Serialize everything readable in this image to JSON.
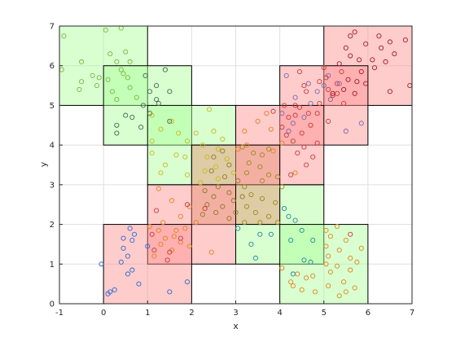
{
  "chart_data": {
    "type": "scatter",
    "title": "",
    "xlabel": "x",
    "ylabel": "y",
    "xlim": [
      -1,
      7
    ],
    "ylim": [
      0,
      7
    ],
    "xticks": [
      -1,
      0,
      1,
      2,
      3,
      4,
      5,
      6,
      7
    ],
    "yticks": [
      0,
      1,
      2,
      3,
      4,
      5,
      6,
      7
    ],
    "grid": true,
    "legend": "none",
    "colors": {
      "green_region": "#aaff99",
      "red_region": "#ff8f8f",
      "region_edge": "#000000"
    },
    "regions": [
      {
        "x0": -1,
        "x1": 1,
        "y0": 5,
        "y1": 7,
        "color": "green"
      },
      {
        "x0": 0,
        "x1": 2,
        "y0": 4,
        "y1": 6,
        "color": "green"
      },
      {
        "x0": 1,
        "x1": 3,
        "y0": 3,
        "y1": 5,
        "color": "green"
      },
      {
        "x0": 2,
        "x1": 4,
        "y0": 2,
        "y1": 4,
        "color": "green"
      },
      {
        "x0": 3,
        "x1": 5,
        "y0": 1,
        "y1": 3,
        "color": "green"
      },
      {
        "x0": 4,
        "x1": 6,
        "y0": 0,
        "y1": 2,
        "color": "green"
      },
      {
        "x0": 5,
        "x1": 7,
        "y0": 5,
        "y1": 7,
        "color": "red"
      },
      {
        "x0": 4,
        "x1": 6,
        "y0": 4,
        "y1": 6,
        "color": "red"
      },
      {
        "x0": 3,
        "x1": 5,
        "y0": 3,
        "y1": 5,
        "color": "red"
      },
      {
        "x0": 2,
        "x1": 4,
        "y0": 2,
        "y1": 4,
        "color": "red"
      },
      {
        "x0": 1,
        "x1": 3,
        "y0": 1,
        "y1": 3,
        "color": "red"
      },
      {
        "x0": 0,
        "x1": 2,
        "y0": 0,
        "y1": 2,
        "color": "red"
      }
    ],
    "series": [
      {
        "color": "#78b83a",
        "points": [
          [
            -0.9,
            6.75
          ],
          [
            0.05,
            6.9
          ],
          [
            0.4,
            6.95
          ],
          [
            0.15,
            6.3
          ],
          [
            0.5,
            6.35
          ],
          [
            0.3,
            6.1
          ],
          [
            -0.5,
            6.1
          ],
          [
            -0.25,
            5.75
          ],
          [
            -0.1,
            5.7
          ],
          [
            -0.5,
            5.6
          ],
          [
            -0.55,
            5.4
          ],
          [
            -0.95,
            5.9
          ],
          [
            0.4,
            5.9
          ],
          [
            0.45,
            5.8
          ],
          [
            0.1,
            5.65
          ],
          [
            0.55,
            5.7
          ],
          [
            0.6,
            5.45
          ],
          [
            0.2,
            5.35
          ],
          [
            0.3,
            5.15
          ],
          [
            0.75,
            5.2
          ],
          [
            -0.15,
            5.5
          ],
          [
            0.6,
            6.1
          ]
        ]
      },
      {
        "color": "#3a6a4a",
        "points": [
          [
            1.4,
            5.9
          ],
          [
            0.95,
            5.75
          ],
          [
            1.2,
            5.5
          ],
          [
            1.05,
            5.35
          ],
          [
            1.2,
            5.15
          ],
          [
            1.5,
            5.35
          ],
          [
            1.25,
            5.05
          ],
          [
            0.9,
            5.0
          ],
          [
            1.05,
            4.8
          ],
          [
            0.5,
            4.75
          ],
          [
            0.65,
            4.7
          ],
          [
            0.3,
            4.5
          ],
          [
            0.85,
            4.45
          ],
          [
            0.3,
            4.3
          ],
          [
            1.5,
            4.6
          ]
        ]
      },
      {
        "color": "#c9b820",
        "points": [
          [
            1.1,
            4.75
          ],
          [
            1.55,
            4.6
          ],
          [
            1.3,
            4.4
          ],
          [
            1.7,
            4.3
          ],
          [
            1.1,
            4.1
          ],
          [
            1.9,
            4.1
          ],
          [
            2.1,
            4.3
          ],
          [
            1.1,
            3.8
          ],
          [
            1.65,
            3.75
          ],
          [
            1.85,
            3.7
          ],
          [
            1.4,
            3.5
          ],
          [
            1.3,
            3.3
          ],
          [
            1.9,
            3.25
          ],
          [
            2.4,
            4.9
          ],
          [
            2.5,
            4.35
          ],
          [
            2.7,
            4.15
          ],
          [
            2.25,
            4.0
          ],
          [
            2.6,
            3.9
          ],
          [
            2.35,
            3.7
          ],
          [
            2.8,
            3.65
          ],
          [
            2.55,
            3.45
          ],
          [
            2.3,
            3.35
          ],
          [
            2.95,
            3.3
          ],
          [
            2.6,
            3.15
          ],
          [
            2.2,
            3.05
          ]
        ]
      },
      {
        "color": "#8a7a2a",
        "points": [
          [
            2.5,
            3.7
          ],
          [
            2.7,
            3.85
          ],
          [
            2.85,
            3.5
          ],
          [
            2.45,
            3.35
          ],
          [
            2.75,
            3.2
          ],
          [
            3.05,
            3.1
          ],
          [
            2.6,
            2.95
          ],
          [
            2.3,
            2.85
          ],
          [
            2.85,
            2.8
          ],
          [
            2.5,
            2.7
          ],
          [
            2.95,
            2.6
          ],
          [
            2.35,
            2.5
          ],
          [
            2.7,
            2.45
          ],
          [
            2.55,
            2.3
          ],
          [
            2.25,
            2.25
          ],
          [
            3.15,
            2.7
          ],
          [
            3.0,
            2.3
          ],
          [
            2.85,
            2.15
          ]
        ]
      },
      {
        "color": "#9a8a20",
        "points": [
          [
            3.15,
            3.95
          ],
          [
            3.4,
            3.8
          ],
          [
            3.6,
            3.75
          ],
          [
            3.75,
            3.9
          ],
          [
            3.3,
            3.55
          ],
          [
            3.55,
            3.45
          ],
          [
            3.75,
            3.25
          ],
          [
            3.25,
            3.3
          ],
          [
            3.6,
            3.1
          ],
          [
            3.95,
            3.2
          ],
          [
            3.2,
            2.95
          ],
          [
            3.35,
            2.75
          ],
          [
            3.6,
            2.65
          ],
          [
            3.9,
            2.55
          ],
          [
            3.25,
            2.45
          ],
          [
            3.45,
            2.3
          ],
          [
            3.75,
            2.2
          ],
          [
            3.95,
            2.05
          ],
          [
            3.2,
            2.05
          ],
          [
            3.55,
            2.05
          ],
          [
            4.05,
            2.95
          ]
        ]
      },
      {
        "color": "#e0841c",
        "points": [
          [
            3.7,
            4.8
          ],
          [
            3.2,
            4.35
          ],
          [
            3.5,
            4.6
          ],
          [
            3.05,
            3.9
          ],
          [
            3.25,
            4.0
          ],
          [
            3.8,
            4.4
          ],
          [
            4.05,
            4.05
          ],
          [
            3.85,
            3.85
          ],
          [
            1.25,
            2.9
          ],
          [
            1.55,
            2.6
          ],
          [
            1.95,
            2.45
          ],
          [
            1.75,
            2.2
          ],
          [
            1.35,
            2.05
          ],
          [
            1.85,
            1.9
          ],
          [
            1.6,
            1.7
          ],
          [
            1.4,
            1.65
          ],
          [
            1.75,
            1.55
          ],
          [
            1.3,
            1.5
          ],
          [
            1.55,
            1.35
          ],
          [
            1.15,
            1.2
          ],
          [
            1.95,
            1.45
          ],
          [
            2.45,
            1.3
          ],
          [
            1.05,
            1.95
          ],
          [
            1.25,
            1.85
          ],
          [
            1.65,
            1.85
          ],
          [
            2.1,
            2.05
          ],
          [
            4.35,
            3.3
          ],
          [
            4.05,
            0.9
          ],
          [
            4.4,
            0.75
          ],
          [
            4.6,
            0.65
          ],
          [
            4.75,
            0.7
          ],
          [
            4.25,
            0.55
          ],
          [
            4.5,
            0.35
          ],
          [
            4.3,
            0.45
          ],
          [
            4.8,
            0.3
          ],
          [
            5.3,
            1.95
          ],
          [
            5.05,
            1.85
          ],
          [
            5.15,
            1.7
          ],
          [
            5.5,
            1.6
          ],
          [
            5.05,
            1.45
          ],
          [
            5.35,
            1.35
          ],
          [
            5.1,
            1.2
          ],
          [
            5.6,
            1.15
          ],
          [
            5.75,
            1.05
          ],
          [
            5.3,
            0.95
          ],
          [
            5.6,
            0.85
          ],
          [
            5.15,
            0.8
          ],
          [
            5.45,
            0.55
          ],
          [
            5.1,
            0.45
          ],
          [
            5.7,
            0.4
          ],
          [
            5.35,
            0.2
          ],
          [
            5.05,
            1.0
          ],
          [
            5.85,
            1.4
          ],
          [
            5.5,
            0.3
          ]
        ]
      },
      {
        "color": "#c73a3a",
        "points": [
          [
            1.2,
            2.35
          ],
          [
            1.1,
            1.75
          ],
          [
            1.45,
            1.1
          ],
          [
            1.5,
            1.3
          ],
          [
            1.15,
            1.35
          ],
          [
            1.75,
            1.65
          ],
          [
            2.3,
            2.4
          ],
          [
            1.9,
            2.5
          ],
          [
            4.25,
            3.25
          ],
          [
            4.6,
            3.5
          ],
          [
            4.4,
            3.8
          ],
          [
            4.75,
            3.7
          ],
          [
            4.55,
            3.95
          ],
          [
            4.15,
            4.25
          ],
          [
            4.5,
            4.3
          ],
          [
            4.7,
            4.5
          ],
          [
            4.2,
            4.7
          ],
          [
            4.05,
            4.45
          ],
          [
            4.35,
            4.75
          ],
          [
            4.45,
            4.95
          ],
          [
            3.85,
            4.85
          ],
          [
            4.35,
            5.0
          ],
          [
            4.65,
            4.8
          ],
          [
            4.55,
            5.5
          ],
          [
            4.9,
            5.6
          ],
          [
            4.45,
            5.85
          ],
          [
            5.0,
            5.95
          ],
          [
            5.05,
            5.7
          ],
          [
            5.4,
            5.85
          ],
          [
            5.3,
            5.55
          ],
          [
            5.1,
            5.4
          ],
          [
            5.2,
            5.25
          ],
          [
            5.3,
            5.3
          ],
          [
            5.45,
            5.05
          ],
          [
            4.9,
            5.05
          ],
          [
            4.85,
            4.8
          ],
          [
            5.1,
            4.6
          ],
          [
            4.3,
            4.1
          ],
          [
            4.85,
            4.05
          ],
          [
            4.6,
            5.35
          ],
          [
            4.1,
            5.0
          ],
          [
            5.6,
            1.75
          ]
        ]
      },
      {
        "color": "#a01830",
        "points": [
          [
            5.6,
            6.75
          ],
          [
            5.7,
            6.85
          ],
          [
            5.95,
            6.55
          ],
          [
            6.25,
            6.75
          ],
          [
            6.5,
            6.6
          ],
          [
            6.85,
            6.65
          ],
          [
            6.3,
            6.45
          ],
          [
            5.5,
            6.45
          ],
          [
            5.6,
            6.25
          ],
          [
            5.8,
            6.15
          ],
          [
            6.1,
            6.15
          ],
          [
            6.6,
            6.3
          ],
          [
            6.4,
            6.1
          ],
          [
            6.15,
            5.95
          ],
          [
            5.85,
            5.85
          ],
          [
            5.55,
            5.65
          ],
          [
            5.75,
            5.6
          ],
          [
            5.95,
            5.55
          ],
          [
            5.45,
            5.4
          ],
          [
            5.7,
            5.3
          ],
          [
            5.2,
            5.3
          ],
          [
            6.5,
            5.35
          ],
          [
            6.95,
            5.5
          ],
          [
            5.35,
            6.05
          ]
        ]
      },
      {
        "color": "#7a6aaa",
        "points": [
          [
            4.15,
            5.75
          ],
          [
            4.65,
            5.55
          ],
          [
            4.85,
            5.35
          ],
          [
            4.35,
            5.2
          ],
          [
            4.7,
            5.05
          ],
          [
            4.05,
            4.8
          ],
          [
            4.55,
            4.7
          ],
          [
            4.3,
            4.55
          ],
          [
            4.2,
            4.35
          ],
          [
            5.1,
            5.75
          ],
          [
            5.35,
            5.55
          ],
          [
            5.0,
            5.5
          ],
          [
            5.15,
            5.15
          ],
          [
            5.5,
            4.35
          ],
          [
            5.85,
            4.55
          ]
        ]
      },
      {
        "color": "#1a8a9a",
        "points": [
          [
            3.05,
            1.9
          ],
          [
            3.55,
            1.75
          ],
          [
            3.8,
            1.75
          ],
          [
            3.35,
            1.5
          ],
          [
            4.1,
            2.4
          ],
          [
            4.2,
            2.2
          ],
          [
            4.35,
            2.1
          ],
          [
            4.5,
            1.85
          ],
          [
            4.25,
            1.6
          ],
          [
            4.75,
            1.6
          ],
          [
            4.55,
            1.1
          ],
          [
            4.7,
            1.05
          ],
          [
            4.3,
            0.75
          ],
          [
            3.45,
            1.15
          ]
        ]
      },
      {
        "color": "#2a6acc",
        "points": [
          [
            0.15,
            0.3
          ],
          [
            0.25,
            0.35
          ],
          [
            0.1,
            0.25
          ],
          [
            -0.05,
            1.0
          ],
          [
            0.4,
            1.05
          ],
          [
            0.55,
            1.2
          ],
          [
            0.45,
            1.4
          ],
          [
            0.65,
            1.6
          ],
          [
            0.7,
            1.75
          ],
          [
            0.6,
            1.9
          ],
          [
            0.45,
            1.65
          ],
          [
            0.65,
            0.85
          ],
          [
            0.55,
            0.75
          ],
          [
            1.0,
            1.45
          ],
          [
            0.8,
            0.5
          ],
          [
            1.5,
            0.3
          ],
          [
            1.9,
            0.55
          ]
        ]
      }
    ]
  }
}
